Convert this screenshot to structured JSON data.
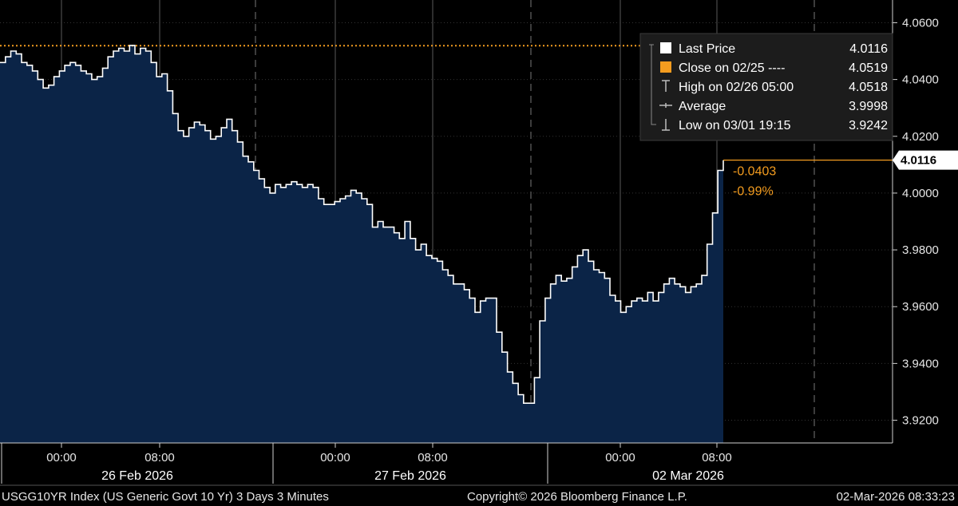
{
  "chart_data": {
    "type": "area",
    "ylim": [
      3.912,
      4.068
    ],
    "y_ticks": [
      "4.0600",
      "4.0400",
      "4.0200",
      "4.0000",
      "3.9800",
      "3.9600",
      "3.9400",
      "3.9200"
    ],
    "y_tick_values": [
      4.06,
      4.04,
      4.02,
      4.0,
      3.98,
      3.96,
      3.94,
      3.92
    ],
    "x_tick_labels": [
      "00:00",
      "08:00",
      "00:00",
      "08:00",
      "00:00",
      "08:00"
    ],
    "date_labels": [
      "26 Feb 2026",
      "27 Feb 2026",
      "02 Mar 2026"
    ],
    "grid": true,
    "legend_position": "top-right",
    "legend": [
      {
        "label": "Last Price",
        "value": "4.0116",
        "color": "#ffffff",
        "marker": "square"
      },
      {
        "label": "Close on 02/25 ----",
        "value": "4.0519",
        "color": "#f39c1f",
        "marker": "square"
      },
      {
        "label": "High on 02/26 05:00",
        "value": "4.0518",
        "color": "#bbbbbb",
        "marker": "high"
      },
      {
        "label": "Average",
        "value": "3.9998",
        "color": "#bbbbbb",
        "marker": "avg"
      },
      {
        "label": "Low on 03/01 19:15",
        "value": "3.9242",
        "color": "#bbbbbb",
        "marker": "low"
      }
    ],
    "close_line_value": 4.0519,
    "last_value": 4.0116,
    "last_tag": "4.0116",
    "change_abs": "-0.0403",
    "change_pct": "-0.99%",
    "area_color": "#0b2447",
    "line_color": "#ffffff",
    "series": [
      {
        "values": [
          4.046,
          4.048,
          4.05,
          4.049,
          4.046,
          4.045,
          4.043,
          4.04,
          4.037,
          4.038,
          4.041,
          4.043,
          4.045,
          4.046,
          4.045,
          4.043,
          4.042,
          4.04,
          4.041,
          4.044,
          4.048,
          4.05,
          4.051,
          4.05,
          4.052,
          4.049,
          4.051,
          4.05,
          4.046,
          4.041,
          4.042,
          4.036,
          4.028,
          4.022,
          4.02,
          4.023,
          4.025,
          4.024,
          4.022,
          4.019,
          4.02,
          4.023,
          4.026,
          4.022,
          4.018,
          4.013,
          4.011,
          4.008,
          4.005,
          4.002,
          4.0,
          4.003,
          4.002,
          4.003,
          4.004,
          4.003,
          4.002,
          4.003,
          4.002,
          3.998,
          3.996,
          3.996,
          3.997,
          3.998,
          3.999,
          4.001,
          4.0,
          3.998,
          3.996,
          3.988,
          3.99,
          3.988,
          3.988,
          3.986,
          3.984,
          3.99,
          3.984,
          3.98,
          3.982,
          3.978,
          3.977,
          3.976,
          3.973,
          3.971,
          3.968,
          3.968,
          3.966,
          3.963,
          3.958,
          3.962,
          3.963,
          3.963,
          3.951,
          3.944,
          3.937,
          3.933,
          3.929,
          3.926,
          3.926,
          3.935,
          3.955,
          3.963,
          3.968,
          3.971,
          3.969,
          3.97,
          3.974,
          3.978,
          3.98,
          3.976,
          3.973,
          3.972,
          3.97,
          3.964,
          3.962,
          3.958,
          3.96,
          3.962,
          3.963,
          3.962,
          3.965,
          3.962,
          3.965,
          3.968,
          3.97,
          3.968,
          3.967,
          3.965,
          3.967,
          3.968,
          3.971,
          3.982,
          3.993,
          4.008,
          4.0116
        ]
      }
    ]
  },
  "footer": {
    "left": "USGG10YR Index (US Generic Govt 10 Yr) 3 Days 3 Minutes",
    "center": "Copyright© 2026 Bloomberg Finance L.P.",
    "right": "02-Mar-2026 08:33:23"
  }
}
